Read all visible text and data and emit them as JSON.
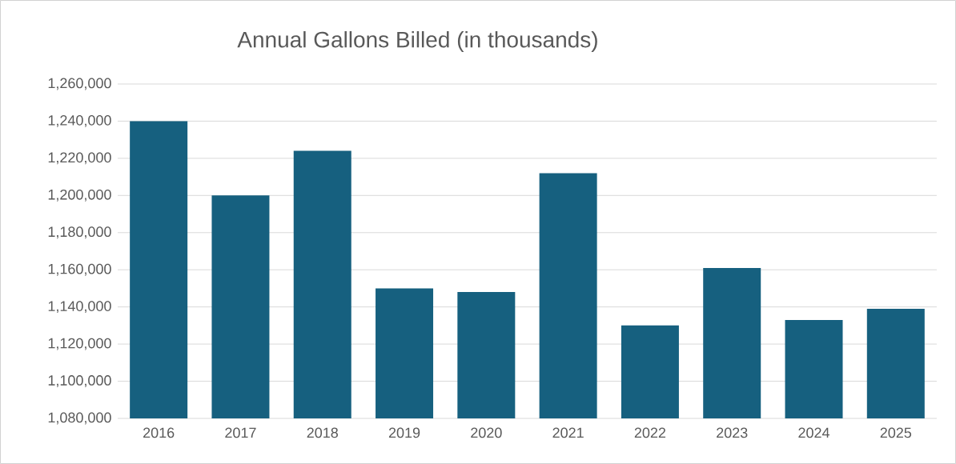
{
  "chart_data": {
    "type": "bar",
    "title": "Annual Gallons Billed (in thousands)",
    "categories": [
      "2016",
      "2017",
      "2018",
      "2019",
      "2020",
      "2021",
      "2022",
      "2023",
      "2024",
      "2025"
    ],
    "values": [
      1240000,
      1200000,
      1224000,
      1150000,
      1148000,
      1212000,
      1130000,
      1161000,
      1133000,
      1139000
    ],
    "color": "#16607f",
    "ylim": [
      1080000,
      1260000
    ],
    "yticks": [
      {
        "value": 1080000,
        "label": "1,080,000"
      },
      {
        "value": 1100000,
        "label": "1,100,000"
      },
      {
        "value": 1120000,
        "label": "1,120,000"
      },
      {
        "value": 1140000,
        "label": "1,140,000"
      },
      {
        "value": 1160000,
        "label": "1,160,000"
      },
      {
        "value": 1180000,
        "label": "1,180,000"
      },
      {
        "value": 1200000,
        "label": "1,200,000"
      },
      {
        "value": 1220000,
        "label": "1,220,000"
      },
      {
        "value": 1240000,
        "label": "1,240,000"
      },
      {
        "value": 1260000,
        "label": "1,260,000"
      }
    ],
    "grid": "y"
  }
}
